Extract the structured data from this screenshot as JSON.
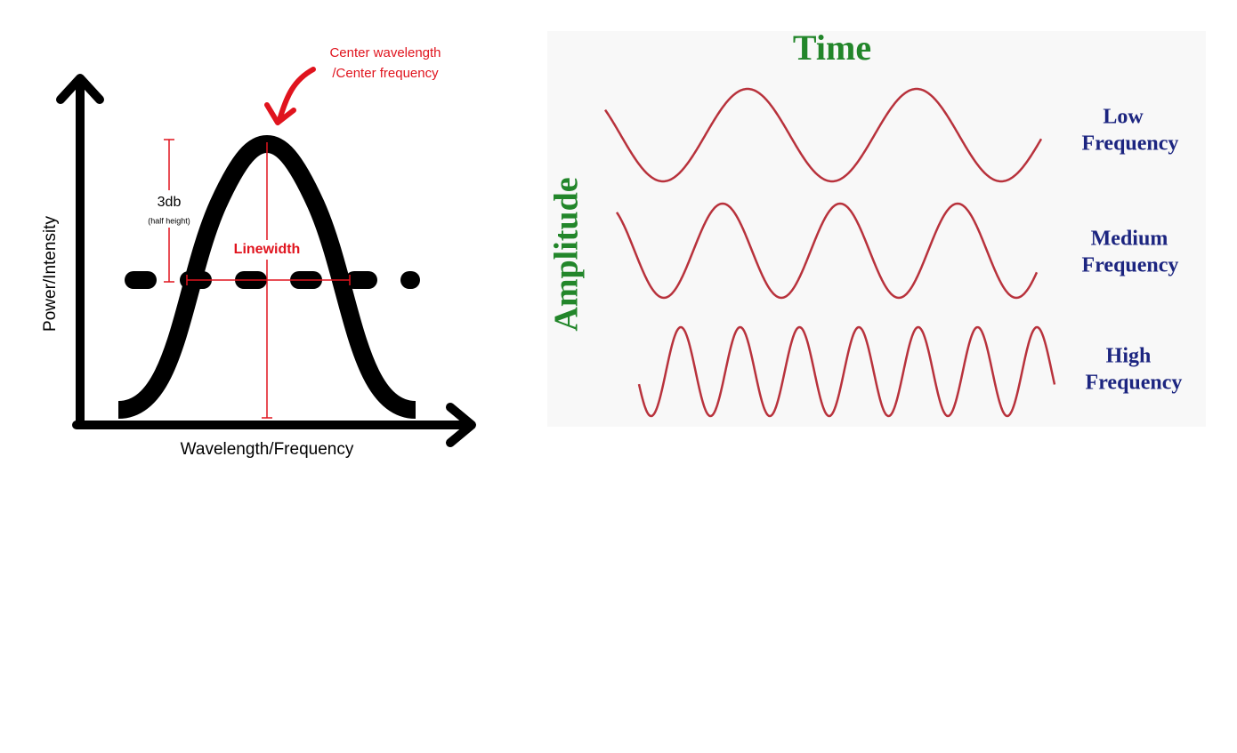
{
  "linewidth_diagram": {
    "center_label": [
      "Center wavelength",
      "/Center frequency"
    ],
    "height_label": "3db",
    "height_note": "(half height)",
    "width_label": "Linewidth",
    "y_axis_label": "Power/Intensity",
    "x_axis_label": "Wavelength/Frequency"
  },
  "frequency_diagram": {
    "x_axis_label": "Time",
    "y_axis_label": "Amplitude",
    "waves": [
      {
        "label": [
          "Low",
          "Frequency"
        ]
      },
      {
        "label": [
          "Medium",
          "Frequency"
        ]
      },
      {
        "label": [
          "High",
          "Frequency"
        ]
      }
    ]
  }
}
